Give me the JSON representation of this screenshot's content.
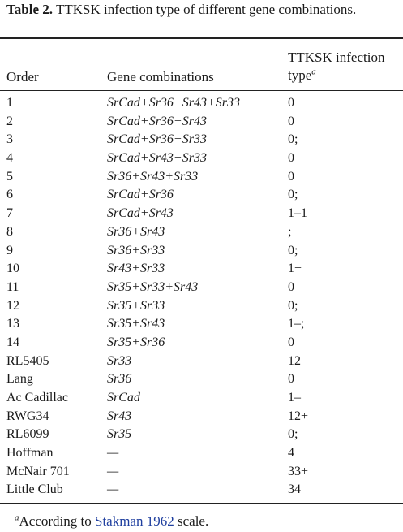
{
  "caption": {
    "label": "Table 2.",
    "text": "TTKSK infection type of different gene combinations."
  },
  "headers": {
    "order": "Order",
    "gene": "Gene combinations",
    "infection": "TTKSK infection type",
    "infection_sup": "a"
  },
  "rows": [
    {
      "order": "1",
      "gene": "SrCad+Sr36+Sr43+Sr33",
      "infection": "0"
    },
    {
      "order": "2",
      "gene": "SrCad+Sr36+Sr43",
      "infection": "0"
    },
    {
      "order": "3",
      "gene": "SrCad+Sr36+Sr33",
      "infection": "0;"
    },
    {
      "order": "4",
      "gene": "SrCad+Sr43+Sr33",
      "infection": "0"
    },
    {
      "order": "5",
      "gene": "Sr36+Sr43+Sr33",
      "infection": "0"
    },
    {
      "order": "6",
      "gene": "SrCad+Sr36",
      "infection": "0;"
    },
    {
      "order": "7",
      "gene": "SrCad+Sr43",
      "infection": "1–1"
    },
    {
      "order": "8",
      "gene": "Sr36+Sr43",
      "infection": ";"
    },
    {
      "order": "9",
      "gene": "Sr36+Sr33",
      "infection": "0;"
    },
    {
      "order": "10",
      "gene": "Sr43+Sr33",
      "infection": "1+"
    },
    {
      "order": "11",
      "gene": "Sr35+Sr33+Sr43",
      "infection": "0"
    },
    {
      "order": "12",
      "gene": "Sr35+Sr33",
      "infection": "0;"
    },
    {
      "order": "13",
      "gene": "Sr35+Sr43",
      "infection": "1–;"
    },
    {
      "order": "14",
      "gene": "Sr35+Sr36",
      "infection": "0"
    },
    {
      "order": "RL5405",
      "gene": "Sr33",
      "infection": "12"
    },
    {
      "order": "Lang",
      "gene": "Sr36",
      "infection": "0"
    },
    {
      "order": "Ac Cadillac",
      "gene": "SrCad",
      "infection": "1–"
    },
    {
      "order": "RWG34",
      "gene": "Sr43",
      "infection": "12+"
    },
    {
      "order": "RL6099",
      "gene": "Sr35",
      "infection": "0;"
    },
    {
      "order": "Hoffman",
      "gene": "—",
      "infection": "4"
    },
    {
      "order": "McNair 701",
      "gene": "—",
      "infection": "33+"
    },
    {
      "order": "Little Club",
      "gene": "—",
      "infection": "34"
    }
  ],
  "footnote": {
    "sup": "a",
    "before": "According to ",
    "link": "Stakman 1962",
    "after": " scale."
  }
}
